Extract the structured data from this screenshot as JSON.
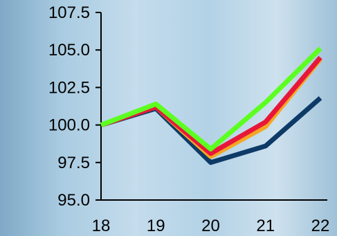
{
  "chart_data": {
    "type": "line",
    "title": "",
    "xlabel": "",
    "ylabel": "",
    "categories": [
      "18",
      "19",
      "20",
      "21",
      "22"
    ],
    "ylim": [
      95.0,
      107.5
    ],
    "yticks": [
      "95.0",
      "97.5",
      "100.0",
      "102.5",
      "105.0",
      "107.5"
    ],
    "grid": false,
    "legend": "none",
    "series": [
      {
        "color": "#0d3a66",
        "values": [
          100.0,
          101.1,
          97.5,
          98.6,
          101.8
        ]
      },
      {
        "color": "#f5a623",
        "values": [
          100.0,
          101.2,
          97.9,
          99.9,
          104.4
        ]
      },
      {
        "color": "#e8173a",
        "values": [
          100.0,
          101.2,
          98.1,
          100.2,
          104.5
        ]
      },
      {
        "color": "#5cff1f",
        "values": [
          100.0,
          101.4,
          98.4,
          101.5,
          105.1
        ]
      }
    ]
  }
}
